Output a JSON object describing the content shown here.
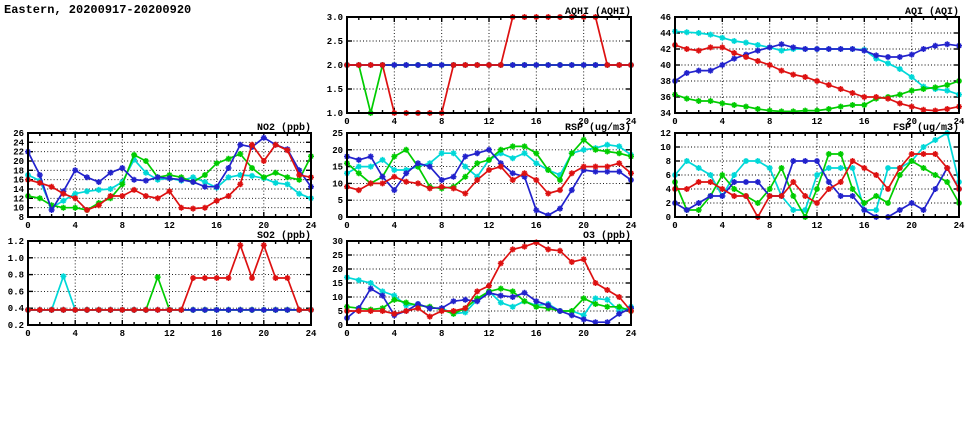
{
  "page_title": "Eastern, 20200917-20200920",
  "colors": {
    "axis": "#000000",
    "cyan": "#00d8d8",
    "green": "#00cc00",
    "blue": "#2222cc",
    "red": "#dd1111",
    "background": "#ffffff"
  },
  "hours": [
    0,
    1,
    2,
    3,
    4,
    5,
    6,
    7,
    8,
    9,
    10,
    11,
    12,
    13,
    14,
    15,
    16,
    17,
    18,
    19,
    20,
    21,
    22,
    23,
    24
  ],
  "chart_data": [
    {
      "id": "aqhi",
      "type": "line",
      "title": "AQHI (AQHI)",
      "grid": {
        "row": 1,
        "col": 2
      },
      "xlim": [
        0,
        24
      ],
      "xticks": [
        0,
        4,
        8,
        12,
        16,
        20,
        24
      ],
      "x_minor_step": 1,
      "ylim": [
        1,
        3
      ],
      "yticks": [
        1,
        1.5,
        2,
        2.5,
        3
      ],
      "ytick_labels": [
        "1.0",
        "1.5",
        "2.0",
        "2.5",
        "3.0"
      ],
      "grid_on": true,
      "legend": "none",
      "series": [
        {
          "name": "cyan-series",
          "color": "#00d8d8",
          "values": [
            2,
            2,
            2,
            2,
            2,
            2,
            2,
            2,
            2,
            2,
            2,
            2,
            2,
            2,
            2,
            2,
            2,
            2,
            2,
            2,
            2,
            2,
            2,
            2,
            2
          ]
        },
        {
          "name": "green-series",
          "color": "#00cc00",
          "values": [
            2,
            2,
            1,
            2,
            2,
            2,
            2,
            2,
            2,
            2,
            2,
            2,
            2,
            2,
            2,
            2,
            2,
            2,
            2,
            2,
            2,
            2,
            2,
            2,
            2
          ]
        },
        {
          "name": "blue-series",
          "color": "#2222cc",
          "values": [
            2,
            2,
            2,
            2,
            2,
            2,
            2,
            2,
            2,
            2,
            2,
            2,
            2,
            2,
            2,
            2,
            2,
            2,
            2,
            2,
            2,
            2,
            2,
            2,
            2
          ]
        },
        {
          "name": "red-series",
          "color": "#dd1111",
          "values": [
            2,
            2,
            2,
            2,
            1,
            1,
            1,
            1,
            1,
            2,
            2,
            2,
            2,
            2,
            3,
            3,
            3,
            3,
            3,
            3,
            3,
            3,
            2,
            2,
            2
          ]
        }
      ]
    },
    {
      "id": "aqi",
      "type": "line",
      "title": "AQI (AQI)",
      "grid": {
        "row": 1,
        "col": 3
      },
      "xlim": [
        0,
        24
      ],
      "xticks": [
        0,
        4,
        8,
        12,
        16,
        20,
        24
      ],
      "x_minor_step": 1,
      "ylim": [
        34,
        46
      ],
      "yticks": [
        34,
        36,
        38,
        40,
        42,
        44,
        46
      ],
      "ytick_labels": [
        "34",
        "36",
        "38",
        "40",
        "42",
        "44",
        "46"
      ],
      "grid_on": true,
      "legend": "none",
      "series": [
        {
          "name": "cyan-series",
          "color": "#00d8d8",
          "values": [
            44.2,
            44.1,
            44,
            43.8,
            43.4,
            43,
            42.8,
            42.5,
            42.2,
            41.8,
            42,
            42,
            42,
            42,
            42,
            42,
            41.9,
            40.8,
            40.2,
            39.5,
            38.5,
            37.3,
            37,
            36.8,
            36.3
          ]
        },
        {
          "name": "green-series",
          "color": "#00cc00",
          "values": [
            36.3,
            35.8,
            35.5,
            35.5,
            35.2,
            35,
            34.8,
            34.5,
            34.3,
            34.2,
            34.2,
            34.3,
            34.3,
            34.5,
            34.8,
            35,
            35,
            35.8,
            36,
            36.3,
            36.8,
            37,
            37.2,
            37.5,
            38
          ]
        },
        {
          "name": "blue-series",
          "color": "#2222cc",
          "values": [
            38,
            39,
            39.3,
            39.3,
            40,
            40.8,
            41.3,
            41.8,
            42.2,
            42.6,
            42.2,
            42,
            42,
            42,
            42,
            42,
            41.8,
            41.2,
            41,
            41,
            41.3,
            42,
            42.4,
            42.6,
            42.4
          ]
        },
        {
          "name": "red-series",
          "color": "#dd1111",
          "values": [
            42.5,
            42,
            41.8,
            42.2,
            42.2,
            41.5,
            41,
            40.5,
            40,
            39.3,
            38.8,
            38.5,
            38,
            37.5,
            37,
            36.5,
            36,
            36,
            35.8,
            35.2,
            34.8,
            34.4,
            34.3,
            34.5,
            34.8
          ]
        }
      ]
    },
    {
      "id": "no2",
      "type": "line",
      "title": "NO2 (ppb)",
      "grid": {
        "row": 2,
        "col": 1
      },
      "xlim": [
        0,
        24
      ],
      "xticks": [
        0,
        4,
        8,
        12,
        16,
        20,
        24
      ],
      "x_minor_step": 1,
      "ylim": [
        8,
        26
      ],
      "yticks": [
        8,
        10,
        12,
        14,
        16,
        18,
        20,
        22,
        24,
        26
      ],
      "ytick_labels": [
        "8",
        "10",
        "12",
        "14",
        "16",
        "18",
        "20",
        "22",
        "24",
        "26"
      ],
      "grid_on": true,
      "legend": "none",
      "series": [
        {
          "name": "cyan-series",
          "color": "#00d8d8",
          "values": [
            17,
            15.8,
            10,
            11.5,
            13,
            13.5,
            13.8,
            14,
            15.5,
            20.3,
            17.5,
            16,
            16.3,
            15.8,
            16.5,
            15.5,
            14.3,
            16.5,
            17,
            16.8,
            16.3,
            15.3,
            15,
            13,
            12
          ]
        },
        {
          "name": "green-series",
          "color": "#00cc00",
          "values": [
            12.5,
            12,
            10.5,
            10,
            10,
            9.5,
            11,
            12,
            15,
            21.3,
            20,
            16.5,
            17,
            16.5,
            15.5,
            17,
            19.5,
            20.5,
            21.5,
            18.5,
            16.5,
            17.5,
            16.5,
            16,
            21
          ]
        },
        {
          "name": "blue-series",
          "color": "#2222cc",
          "values": [
            22,
            17,
            9.5,
            13.5,
            18,
            16.5,
            15.5,
            17.5,
            18.5,
            16,
            15.8,
            16.5,
            16.3,
            16,
            15.5,
            14.5,
            14.5,
            18.5,
            23.5,
            23,
            25,
            23.5,
            22.5,
            18,
            14.5
          ]
        },
        {
          "name": "red-series",
          "color": "#dd1111",
          "values": [
            16,
            15.3,
            14.5,
            13,
            12,
            9.5,
            10.5,
            12.5,
            12.5,
            13.8,
            12.5,
            12,
            13.5,
            10,
            9.8,
            10,
            11.5,
            12.5,
            15,
            23.5,
            20,
            23.5,
            22.3,
            17,
            16.5
          ]
        }
      ]
    },
    {
      "id": "rsp",
      "type": "line",
      "title": "RSP (ug/m3)",
      "grid": {
        "row": 2,
        "col": 2
      },
      "xlim": [
        0,
        24
      ],
      "xticks": [
        0,
        4,
        8,
        12,
        16,
        20,
        24
      ],
      "x_minor_step": 1,
      "ylim": [
        0,
        25
      ],
      "yticks": [
        0,
        5,
        10,
        15,
        20,
        25
      ],
      "ytick_labels": [
        "0",
        "5",
        "10",
        "15",
        "20",
        "25"
      ],
      "grid_on": true,
      "legend": "none",
      "series": [
        {
          "name": "cyan-series",
          "color": "#00d8d8",
          "values": [
            13,
            15,
            15,
            17,
            14,
            14,
            15,
            16,
            19,
            19,
            15,
            12,
            17,
            19,
            17.5,
            19,
            16,
            14,
            12.5,
            19,
            20,
            20.5,
            21.5,
            21,
            18.5
          ]
        },
        {
          "name": "green-series",
          "color": "#00cc00",
          "values": [
            16,
            13,
            10,
            12,
            18,
            20,
            15,
            9,
            8.5,
            9,
            12,
            16,
            17,
            20,
            21,
            21,
            19,
            14,
            11,
            19,
            23,
            20,
            19.5,
            19,
            18
          ]
        },
        {
          "name": "blue-series",
          "color": "#2222cc",
          "values": [
            18,
            17,
            18,
            12,
            8,
            13,
            16,
            15,
            11,
            12,
            18,
            19,
            20,
            16,
            13,
            12,
            2,
            0.5,
            2.5,
            8,
            14,
            13.5,
            13.5,
            13.5,
            11
          ]
        },
        {
          "name": "red-series",
          "color": "#dd1111",
          "values": [
            9,
            8,
            10,
            10,
            12,
            10.5,
            10,
            8.5,
            9,
            8.5,
            7,
            11,
            14,
            15,
            11,
            13,
            11,
            7,
            8,
            13,
            15,
            15,
            15,
            16,
            13
          ]
        }
      ]
    },
    {
      "id": "fsp",
      "type": "line",
      "title": "FSP (ug/m3)",
      "grid": {
        "row": 2,
        "col": 3
      },
      "xlim": [
        0,
        24
      ],
      "xticks": [
        0,
        4,
        8,
        12,
        16,
        20,
        24
      ],
      "x_minor_step": 1,
      "ylim": [
        0,
        12
      ],
      "yticks": [
        0,
        2,
        4,
        6,
        8,
        10,
        12
      ],
      "ytick_labels": [
        "0",
        "2",
        "4",
        "6",
        "8",
        "10",
        "12"
      ],
      "grid_on": true,
      "legend": "none",
      "series": [
        {
          "name": "cyan-series",
          "color": "#00d8d8",
          "values": [
            6,
            8,
            7,
            6,
            3,
            6,
            8,
            8,
            7,
            3,
            1,
            1,
            6,
            7,
            7,
            7,
            1,
            1,
            7,
            7,
            8,
            10,
            11,
            12,
            5
          ]
        },
        {
          "name": "green-series",
          "color": "#00cc00",
          "values": [
            5,
            1,
            1,
            3,
            6,
            4,
            3,
            2,
            4,
            7,
            3,
            0,
            4,
            9,
            9,
            4,
            2,
            3,
            2,
            6,
            8,
            7,
            6,
            5,
            2
          ]
        },
        {
          "name": "blue-series",
          "color": "#2222cc",
          "values": [
            2,
            1,
            2,
            3,
            3,
            5,
            5,
            5,
            3,
            3,
            8,
            8,
            8,
            5,
            3,
            3,
            1,
            0,
            0,
            1,
            2,
            1,
            4,
            7,
            4
          ]
        },
        {
          "name": "red-series",
          "color": "#dd1111",
          "values": [
            4,
            4,
            5,
            5,
            4,
            3,
            3,
            0,
            3,
            3,
            5,
            3,
            2,
            4,
            5,
            8,
            7,
            6,
            4,
            7,
            9,
            9,
            9,
            7,
            4
          ]
        }
      ]
    },
    {
      "id": "so2",
      "type": "line",
      "title": "SO2 (ppb)",
      "grid": {
        "row": 3,
        "col": 1
      },
      "xlim": [
        0,
        24
      ],
      "xticks": [
        0,
        4,
        8,
        12,
        16,
        20,
        24
      ],
      "x_minor_step": 1,
      "ylim": [
        0.2,
        1.2
      ],
      "yticks": [
        0.2,
        0.4,
        0.6,
        0.8,
        1.0,
        1.2
      ],
      "ytick_labels": [
        "0.2",
        "0.4",
        "0.6",
        "0.8",
        "1.0",
        "1.2"
      ],
      "grid_on": true,
      "legend": "none",
      "series": [
        {
          "name": "cyan-series",
          "color": "#00d8d8",
          "values": [
            0.38,
            0.38,
            0.38,
            0.78,
            0.38,
            0.38,
            0.38,
            0.38,
            0.38,
            0.38,
            0.38,
            0.38,
            0.38,
            0.38,
            0.38,
            0.38,
            0.38,
            0.38,
            0.38,
            0.38,
            0.38,
            0.38,
            0.38,
            0.38,
            0.38
          ]
        },
        {
          "name": "green-series",
          "color": "#00cc00",
          "values": [
            0.38,
            0.38,
            0.38,
            0.38,
            0.38,
            0.38,
            0.38,
            0.38,
            0.38,
            0.38,
            0.38,
            0.77,
            0.38,
            0.38,
            0.38,
            0.38,
            0.38,
            0.38,
            0.38,
            0.38,
            0.38,
            0.38,
            0.38,
            0.38,
            0.38
          ]
        },
        {
          "name": "blue-series",
          "color": "#2222cc",
          "values": [
            0.38,
            0.38,
            0.38,
            0.38,
            0.38,
            0.38,
            0.38,
            0.38,
            0.38,
            0.38,
            0.38,
            0.38,
            0.38,
            0.38,
            0.38,
            0.38,
            0.38,
            0.38,
            0.38,
            0.38,
            0.38,
            0.38,
            0.38,
            0.38,
            0.38
          ]
        },
        {
          "name": "red-series",
          "color": "#dd1111",
          "values": [
            0.38,
            0.38,
            0.38,
            0.38,
            0.38,
            0.38,
            0.38,
            0.38,
            0.38,
            0.38,
            0.38,
            0.38,
            0.38,
            0.38,
            0.76,
            0.76,
            0.76,
            0.76,
            1.15,
            0.76,
            1.15,
            0.76,
            0.76,
            0.38,
            0.38
          ]
        }
      ]
    },
    {
      "id": "o3",
      "type": "line",
      "title": "O3 (ppb)",
      "grid": {
        "row": 3,
        "col": 2
      },
      "xlim": [
        0,
        24
      ],
      "xticks": [
        0,
        4,
        8,
        12,
        16,
        20,
        24
      ],
      "x_minor_step": 1,
      "ylim": [
        0,
        30
      ],
      "yticks": [
        0,
        5,
        10,
        15,
        20,
        25,
        30
      ],
      "ytick_labels": [
        "0",
        "5",
        "10",
        "15",
        "20",
        "25",
        "30"
      ],
      "grid_on": true,
      "legend": "none",
      "series": [
        {
          "name": "cyan-series",
          "color": "#00d8d8",
          "values": [
            17,
            16,
            15,
            12,
            10.5,
            7,
            7.5,
            6,
            6,
            4,
            4.5,
            9,
            12,
            8,
            6.5,
            8.5,
            7,
            7.5,
            5,
            5,
            3.5,
            9.5,
            9,
            5,
            6.5
          ]
        },
        {
          "name": "green-series",
          "color": "#00cc00",
          "values": [
            6.5,
            6,
            5.5,
            6,
            9,
            8,
            7,
            6.5,
            5.5,
            4,
            6,
            9.5,
            12,
            13,
            12,
            8.5,
            6.5,
            6,
            5,
            5,
            9.5,
            7.5,
            6.5,
            6.5,
            5
          ]
        },
        {
          "name": "blue-series",
          "color": "#2222cc",
          "values": [
            2.5,
            6,
            13,
            10.5,
            3.5,
            5,
            7.5,
            6,
            6,
            8.5,
            9,
            8.5,
            11.5,
            10.5,
            10,
            11.5,
            8.5,
            7,
            5,
            3.5,
            2,
            1,
            1,
            4,
            6
          ]
        },
        {
          "name": "red-series",
          "color": "#dd1111",
          "values": [
            5,
            5,
            5,
            5,
            4,
            5,
            6,
            3,
            5,
            5,
            6,
            12,
            14,
            22,
            27,
            28,
            29.5,
            27,
            26.5,
            22.5,
            23.5,
            15,
            12.5,
            10,
            5
          ]
        }
      ]
    }
  ]
}
